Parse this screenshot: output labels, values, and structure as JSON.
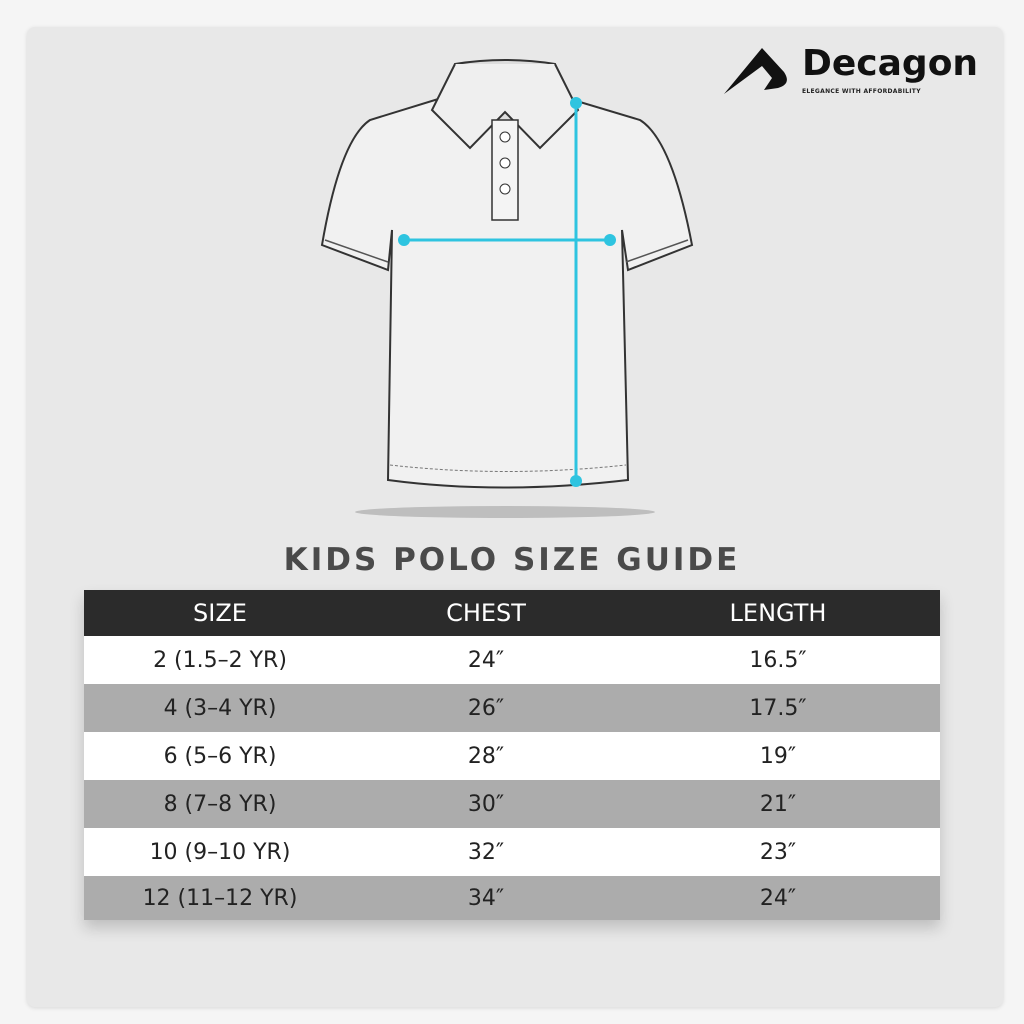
{
  "brand": {
    "name": "Decagon",
    "tagline": "ELEGANCE WITH AFFORDABILITY"
  },
  "title": "KIDS POLO SIZE GUIDE",
  "colors": {
    "measure_line": "#2ec4e0",
    "header_bg": "#2b2b2b",
    "row_alt": "#acacac"
  },
  "table": {
    "headers": [
      "SIZE",
      "CHEST",
      "LENGTH"
    ],
    "rows": [
      [
        "2 (1.5–2 YR)",
        "24″",
        "16.5″"
      ],
      [
        "4 (3–4 YR)",
        "26″",
        "17.5″"
      ],
      [
        "6 (5–6 YR)",
        "28″",
        "19″"
      ],
      [
        "8 (7–8 YR)",
        "30″",
        "21″"
      ],
      [
        "10 (9–10 YR)",
        "32″",
        "23″"
      ],
      [
        "12 (11–12 YR)",
        "34″",
        "24″"
      ]
    ]
  }
}
